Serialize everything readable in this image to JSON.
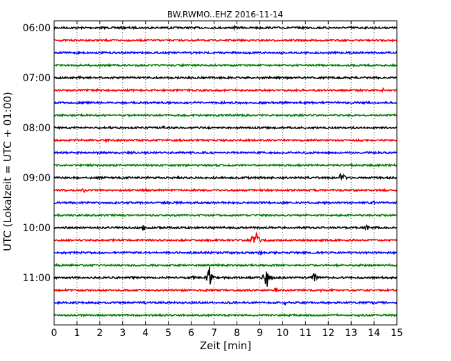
{
  "chart_data": {
    "type": "line",
    "title": "BW.RWMO..EHZ 2016-11-14",
    "xlabel": "Zeit  [min]",
    "ylabel": "UTC (Lokalzeit = UTC + 01:00)",
    "xlim": [
      0,
      15
    ],
    "x_ticks": [
      "0",
      "1",
      "2",
      "3",
      "4",
      "5",
      "6",
      "7",
      "8",
      "9",
      "10",
      "11",
      "12",
      "13",
      "14",
      "15"
    ],
    "y_tick_labels": [
      "06:00",
      "07:00",
      "08:00",
      "09:00",
      "10:00",
      "11:00"
    ],
    "grid": "vertical dotted",
    "colors": [
      "#000000",
      "#ff0000",
      "#0000ff",
      "#008000"
    ],
    "traces": [
      {
        "start": "06:00",
        "color": "#000000",
        "events": [
          {
            "t": 7.9,
            "amp": 0.15
          },
          {
            "t": 13.0,
            "amp": 0.12
          }
        ]
      },
      {
        "start": "06:15",
        "color": "#ff0000",
        "events": []
      },
      {
        "start": "06:30",
        "color": "#0000ff",
        "events": [
          {
            "t": 6.2,
            "amp": 0.12
          },
          {
            "t": 9.9,
            "amp": 0.12
          }
        ]
      },
      {
        "start": "06:45",
        "color": "#008000",
        "events": [
          {
            "t": 2.0,
            "amp": 0.1
          },
          {
            "t": 14.7,
            "amp": 0.1
          }
        ]
      },
      {
        "start": "07:00",
        "color": "#000000",
        "events": [
          {
            "t": 1.1,
            "amp": 0.15
          },
          {
            "t": 4.6,
            "amp": 0.15
          },
          {
            "t": 8.9,
            "amp": 0.18
          }
        ]
      },
      {
        "start": "07:15",
        "color": "#ff0000",
        "events": [
          {
            "t": 4.0,
            "amp": 0.12
          },
          {
            "t": 14.4,
            "amp": 0.15
          }
        ]
      },
      {
        "start": "07:30",
        "color": "#0000ff",
        "events": []
      },
      {
        "start": "07:45",
        "color": "#008000",
        "events": [
          {
            "t": 12.5,
            "amp": 0.12
          }
        ]
      },
      {
        "start": "08:00",
        "color": "#000000",
        "events": [
          {
            "t": 4.8,
            "amp": 0.18
          },
          {
            "t": 10.0,
            "amp": 0.12
          }
        ]
      },
      {
        "start": "08:15",
        "color": "#ff0000",
        "events": [
          {
            "t": 1.0,
            "amp": 0.15
          },
          {
            "t": 2.3,
            "amp": 0.15
          }
        ]
      },
      {
        "start": "08:30",
        "color": "#0000ff",
        "events": []
      },
      {
        "start": "08:45",
        "color": "#008000",
        "events": [
          {
            "t": 13.0,
            "amp": 0.12
          }
        ]
      },
      {
        "start": "09:00",
        "color": "#000000",
        "events": [
          {
            "t": 12.6,
            "amp": 0.55
          },
          {
            "t": 8.5,
            "amp": 0.12
          }
        ]
      },
      {
        "start": "09:15",
        "color": "#ff0000",
        "events": [
          {
            "t": 1.3,
            "amp": 0.2
          },
          {
            "t": 10.0,
            "amp": 0.12
          }
        ]
      },
      {
        "start": "09:30",
        "color": "#0000ff",
        "events": [
          {
            "t": 14.0,
            "amp": 0.15
          }
        ]
      },
      {
        "start": "09:45",
        "color": "#008000",
        "events": [
          {
            "t": 4.3,
            "amp": 0.1
          }
        ]
      },
      {
        "start": "10:00",
        "color": "#000000",
        "events": [
          {
            "t": 3.9,
            "amp": 0.25
          },
          {
            "t": 13.7,
            "amp": 0.25
          },
          {
            "t": 7.0,
            "amp": 0.12
          }
        ]
      },
      {
        "start": "10:15",
        "color": "#ff0000",
        "events": [
          {
            "t": 8.8,
            "amp": 0.95
          }
        ]
      },
      {
        "start": "10:30",
        "color": "#0000ff",
        "events": [
          {
            "t": 9.0,
            "amp": 0.18
          }
        ]
      },
      {
        "start": "10:45",
        "color": "#008000",
        "events": []
      },
      {
        "start": "11:00",
        "color": "#000000",
        "events": [
          {
            "t": 6.8,
            "amp": 0.9
          },
          {
            "t": 9.3,
            "amp": 0.95
          },
          {
            "t": 11.4,
            "amp": 0.55
          },
          {
            "t": 6.1,
            "amp": 0.2
          }
        ]
      },
      {
        "start": "11:15",
        "color": "#ff0000",
        "events": [
          {
            "t": 9.7,
            "amp": 0.2
          },
          {
            "t": 11.7,
            "amp": 0.15
          }
        ]
      },
      {
        "start": "11:30",
        "color": "#0000ff",
        "events": [
          {
            "t": 10.1,
            "amp": 0.15
          }
        ]
      },
      {
        "start": "11:45",
        "color": "#008000",
        "events": [
          {
            "t": 13.3,
            "amp": 0.15
          },
          {
            "t": 14.7,
            "amp": 0.12
          }
        ]
      }
    ]
  }
}
